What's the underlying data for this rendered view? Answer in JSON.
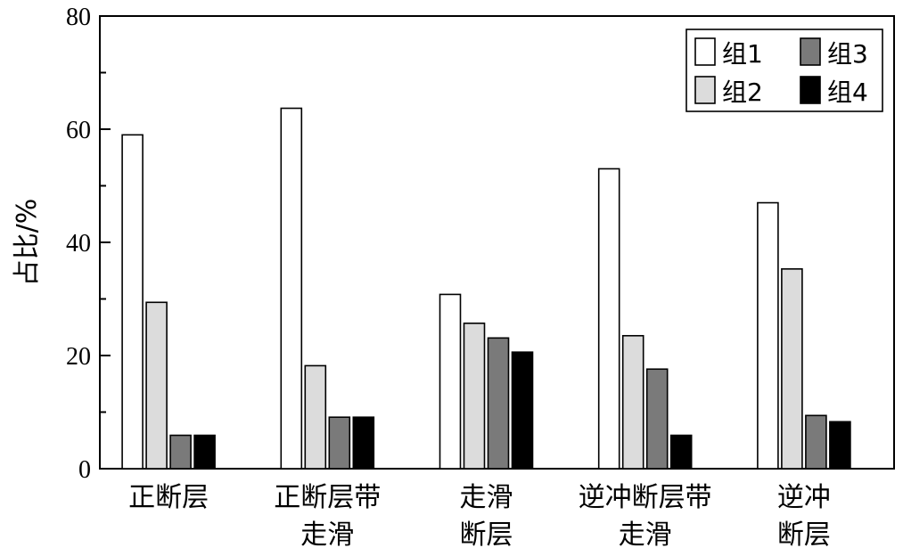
{
  "chart_data": {
    "type": "bar",
    "ylabel": "占比/%",
    "ylim": [
      0,
      80
    ],
    "yticks": [
      0,
      20,
      40,
      60,
      80
    ],
    "categories": [
      [
        "正断层"
      ],
      [
        "正断层带",
        "走滑"
      ],
      [
        "走滑",
        "断层"
      ],
      [
        "逆冲断层带",
        "走滑"
      ],
      [
        "逆冲",
        "断层"
      ]
    ],
    "series": [
      {
        "name": "组1",
        "color": "#ffffff",
        "values": [
          59,
          63.7,
          30.8,
          53,
          47
        ]
      },
      {
        "name": "组2",
        "color": "#dcdcdc",
        "values": [
          29.4,
          18.2,
          25.7,
          23.5,
          35.3
        ]
      },
      {
        "name": "组3",
        "color": "#7a7a7a",
        "values": [
          5.9,
          9.1,
          23.1,
          17.6,
          9.4
        ]
      },
      {
        "name": "组4",
        "color": "#000000",
        "values": [
          5.9,
          9.1,
          20.6,
          5.9,
          8.3
        ]
      }
    ],
    "legend": {
      "position": "top-right",
      "columns": 2
    }
  }
}
